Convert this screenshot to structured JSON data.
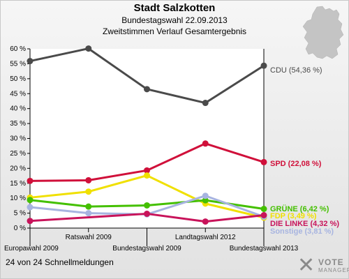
{
  "header": {
    "title": "Stadt Salzkotten",
    "subtitle": "Bundestagswahl 22.09.2013",
    "subtitle2": "Zweitstimmen Verlauf Gesamtergebnis"
  },
  "footer": {
    "note": "24 von 24 Schnellmeldungen",
    "brand_line1": "VOTE",
    "brand_line2": "MANAGER",
    "brand_icon": "x-cross-icon"
  },
  "map_icon": "germany-map-icon",
  "chart_data": {
    "type": "line",
    "categories": [
      "Europawahl 2009",
      "Ratswahl 2009",
      "Bundestagswahl 2009",
      "Landtagswahl 2012",
      "Bundestagswahl 2013"
    ],
    "y_ticks": [
      "0 %",
      "5 %",
      "10 %",
      "15 %",
      "20 %",
      "25 %",
      "30 %",
      "35 %",
      "40 %",
      "45 %",
      "50 %",
      "55 %",
      "60 %"
    ],
    "ylim": [
      0,
      60
    ],
    "grid": false,
    "series": [
      {
        "name": "CDU",
        "label": "CDU (54,36 %)",
        "color": "#4a4a4a",
        "values": [
          55.9,
          60.1,
          46.5,
          41.9,
          54.36
        ]
      },
      {
        "name": "SPD",
        "label": "SPD (22,08 %)",
        "color": "#d0103a",
        "values": [
          15.8,
          16.0,
          19.3,
          28.3,
          22.08
        ]
      },
      {
        "name": "FDP",
        "label": "FDP (3,49 %)",
        "color": "#f0e000",
        "values": [
          10.2,
          12.2,
          17.6,
          8.2,
          3.49
        ]
      },
      {
        "name": "GRÜNE",
        "label": "GRÜNE (6,42 %)",
        "color": "#44c000",
        "values": [
          9.4,
          7.2,
          7.6,
          9.3,
          6.42
        ]
      },
      {
        "name": "Sonstige",
        "label": "Sonstige (3,81 %)",
        "color": "#a7b4e0",
        "values": [
          7.0,
          5.0,
          4.6,
          10.8,
          3.81
        ]
      },
      {
        "name": "DIE LINKE",
        "label": "DIE LINKE (4,32 %)",
        "color": "#c8135a",
        "values": [
          2.4,
          null,
          4.8,
          2.2,
          4.32
        ]
      }
    ]
  }
}
